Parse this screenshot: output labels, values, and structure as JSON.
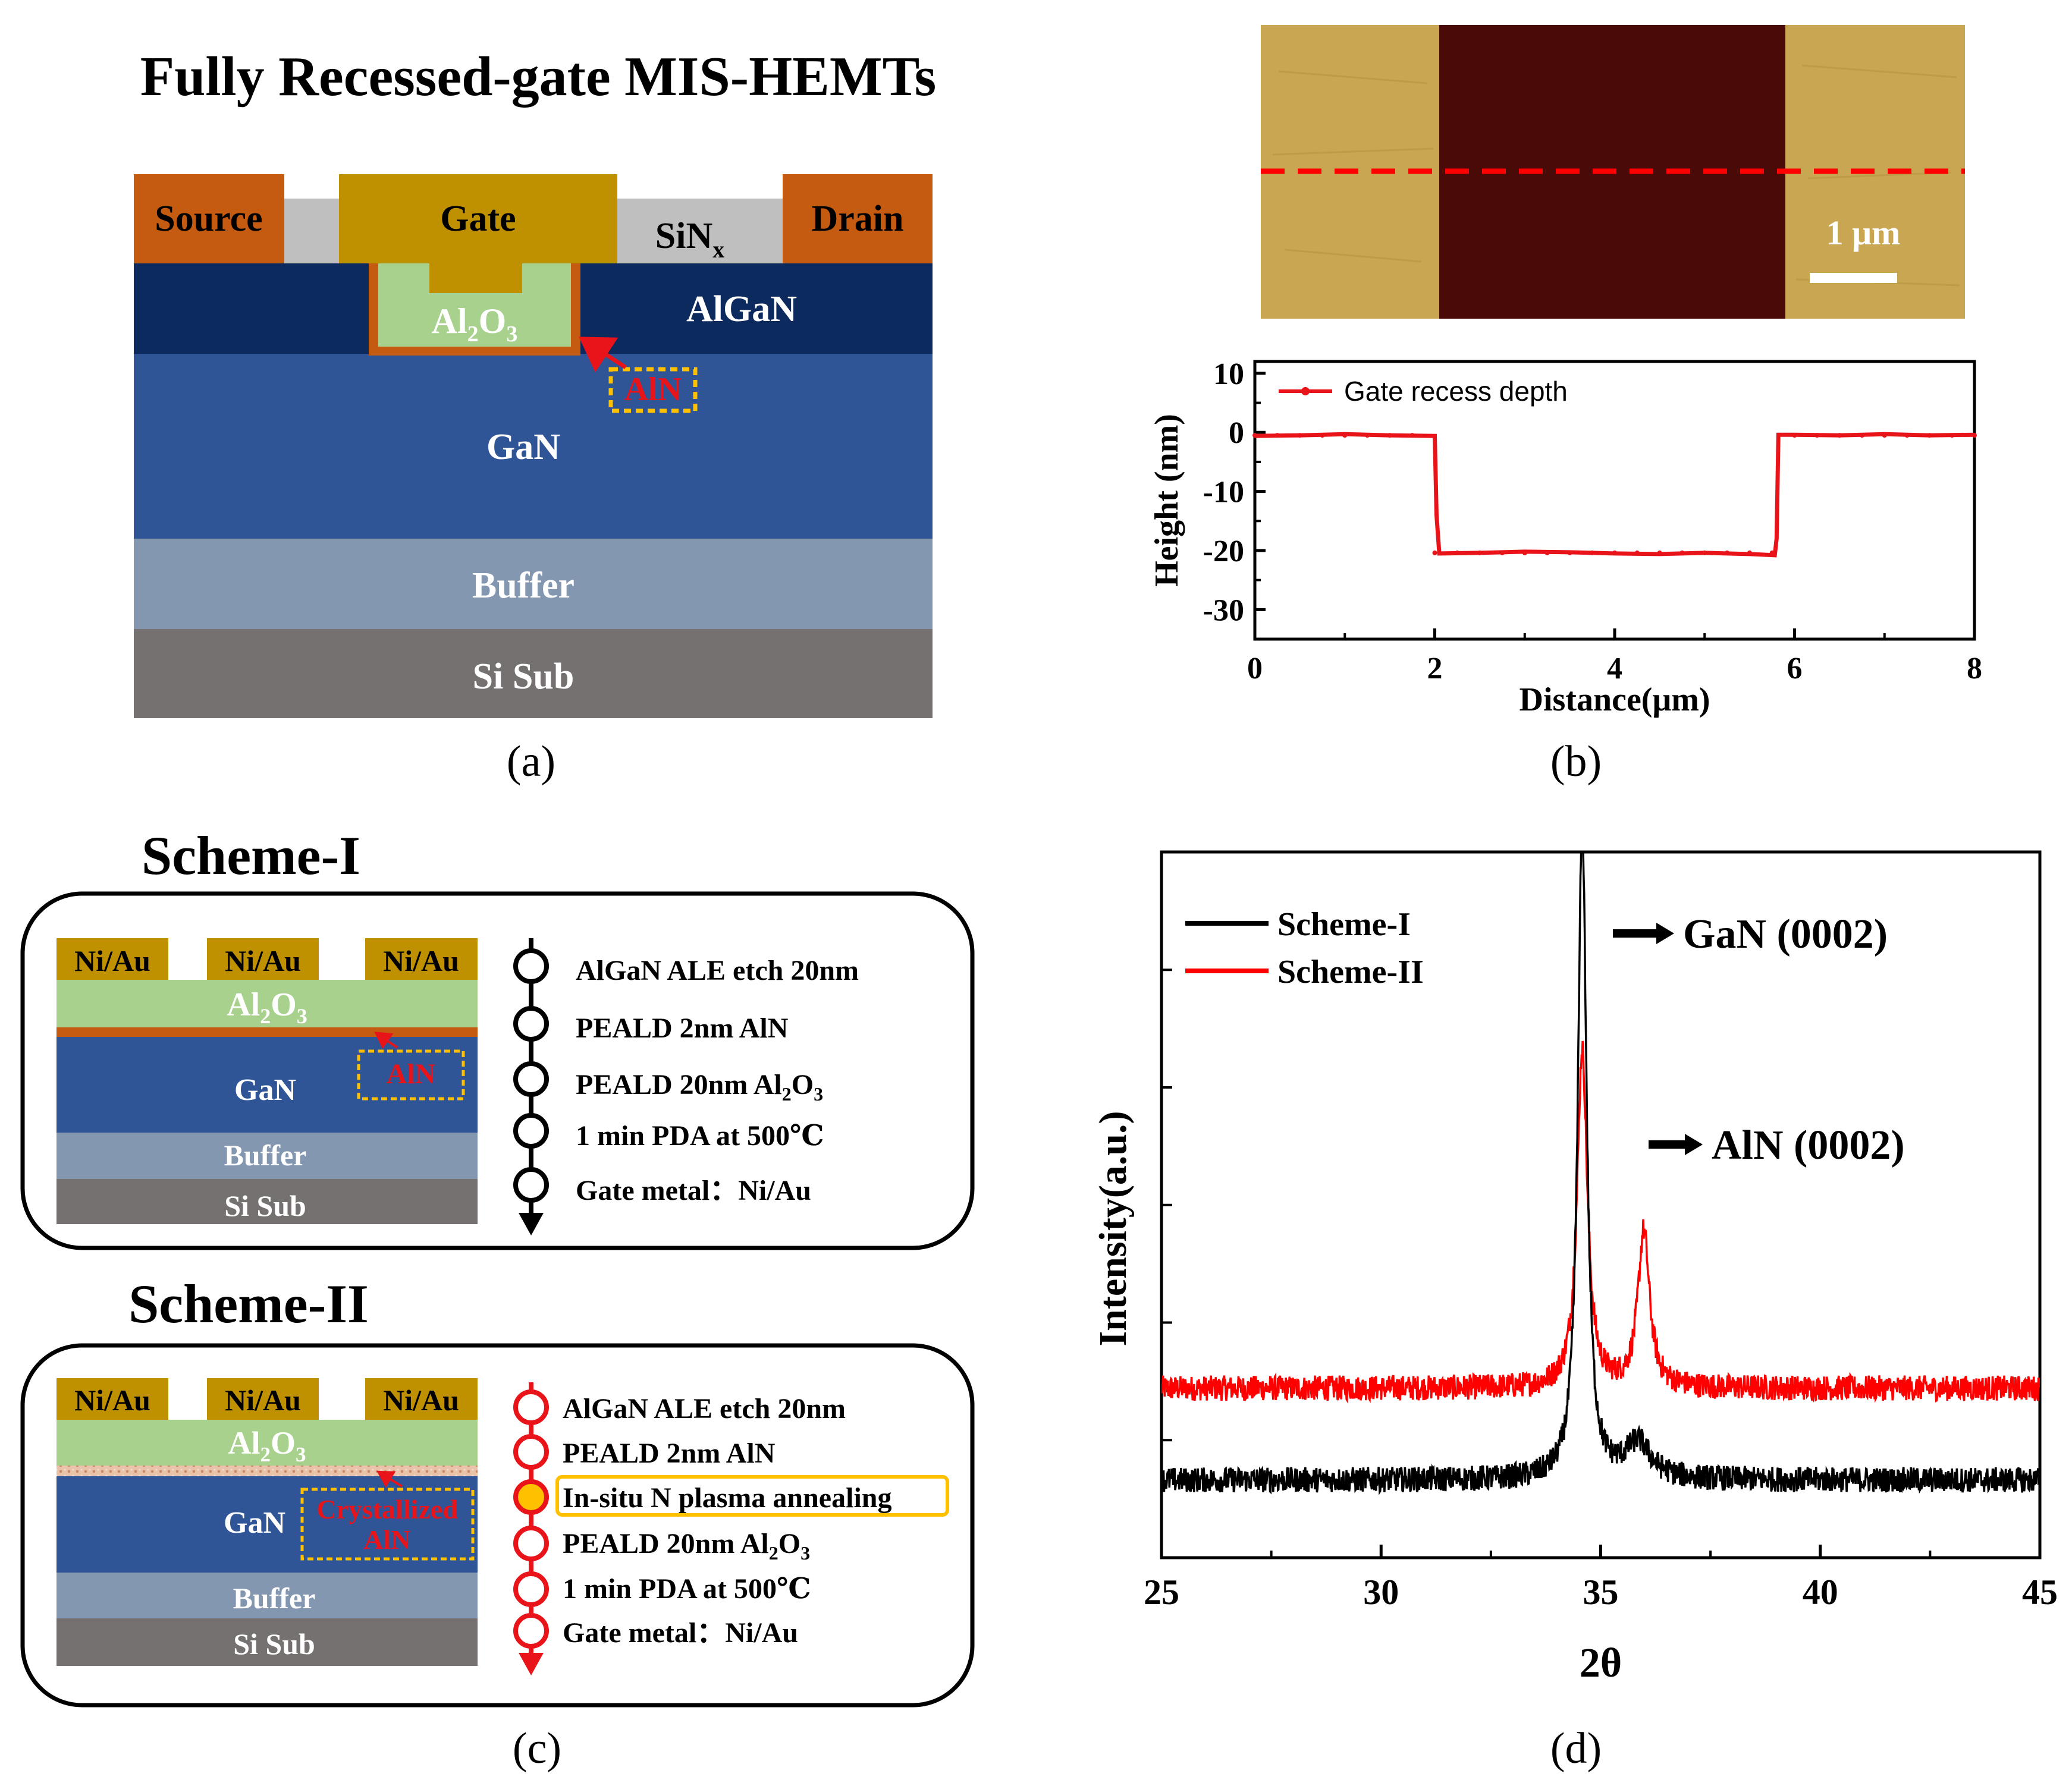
{
  "panel_a": {
    "title": "Fully Recessed-gate MIS-HEMTs",
    "label": "(a)",
    "source": "Source",
    "gate": "Gate",
    "drain": "Drain",
    "sinx_base": "SiN",
    "sinx_sub": "x",
    "algan": "AlGaN",
    "al2o3": {
      "a": "Al",
      "s1": "2",
      "b": "O",
      "s2": "3"
    },
    "aln": "AlN",
    "gan": "GaN",
    "buffer": "Buffer",
    "si_sub": "Si Sub",
    "colors": {
      "contact": "#c55a11",
      "gate": "#bf9000",
      "sinx": "#bfbfbf",
      "algan": "#0d2a5e",
      "gan": "#2f5597",
      "buffer": "#8497b0",
      "sisub": "#767171",
      "al2o3": "#a9d18e"
    }
  },
  "panel_b": {
    "label": "(b)",
    "scale_bar": "1 μm",
    "colors": {
      "afm_high": "#c9a651",
      "afm_low": "#4a0a08",
      "profile": "#e8141a"
    }
  },
  "panel_c": {
    "label": "(c)",
    "scheme1": {
      "title": "Scheme-I",
      "contacts": [
        "Ni/Au",
        "Ni/Au",
        "Ni/Au"
      ],
      "al2o3": {
        "a": "Al",
        "s1": "2",
        "b": "O",
        "s2": "3"
      },
      "aln": "AlN",
      "gan": "GaN",
      "buffer": "Buffer",
      "si_sub": "Si Sub",
      "steps": [
        "AlGaN ALE etch 20nm",
        "PEALD 2nm AlN",
        "PEALD 20nm Al",
        "1 min PDA at 500℃",
        "Gate metal：Ni/Au"
      ],
      "step3_sub1": "2",
      "step3_mid": "O",
      "step3_sub2": "3"
    },
    "scheme2": {
      "title": "Scheme-II",
      "contacts": [
        "Ni/Au",
        "Ni/Au",
        "Ni/Au"
      ],
      "al2o3": {
        "a": "Al",
        "s1": "2",
        "b": "O",
        "s2": "3"
      },
      "aln_line1": "Crystallized",
      "aln_line2": "AlN",
      "gan": "GaN",
      "buffer": "Buffer",
      "si_sub": "Si Sub",
      "steps": [
        "AlGaN ALE etch 20nm",
        "PEALD 2nm AlN",
        "In-situ N plasma annealing",
        "PEALD 20nm Al",
        "1 min PDA at 500℃",
        "Gate metal：Ni/Au"
      ],
      "step4_sub1": "2",
      "step4_mid": "O",
      "step4_sub2": "3"
    }
  },
  "panel_d": {
    "label": "(d)",
    "peak_gan": "GaN (0002)",
    "peak_aln": "AlN (0002)"
  },
  "chart_data": [
    {
      "id": "afm-profile",
      "type": "line",
      "title": "",
      "xlabel": "Distance(μm)",
      "ylabel": "Height (nm)",
      "xlim": [
        0,
        8
      ],
      "ylim": [
        -35,
        12
      ],
      "xticks": [
        0,
        2,
        4,
        6,
        8
      ],
      "yticks": [
        10,
        0,
        -10,
        -20,
        -30
      ],
      "legend": [
        "Gate recess depth"
      ],
      "legend_position": "top-left",
      "series": [
        {
          "name": "Gate recess depth",
          "x": [
            0,
            0.5,
            1,
            1.5,
            2.0,
            2.02,
            2.05,
            2.5,
            3,
            3.5,
            4,
            4.5,
            5,
            5.5,
            5.78,
            5.8,
            5.82,
            6,
            6.5,
            7,
            7.5,
            8
          ],
          "y": [
            -0.6,
            -0.5,
            -0.3,
            -0.5,
            -0.6,
            -14,
            -20.5,
            -20.4,
            -20.2,
            -20.3,
            -20.5,
            -20.6,
            -20.4,
            -20.6,
            -20.8,
            -18,
            -0.4,
            -0.4,
            -0.5,
            -0.3,
            -0.5,
            -0.4
          ]
        }
      ]
    },
    {
      "id": "xrd",
      "type": "line",
      "title": "",
      "xlabel": "2θ",
      "ylabel": "Intensity(a.u.)",
      "xlim": [
        25,
        45
      ],
      "ylim": [
        0,
        1.0
      ],
      "xticks": [
        25,
        30,
        35,
        40,
        45
      ],
      "legend": [
        "Scheme-I",
        "Scheme-II"
      ],
      "legend_position": "top-left",
      "series": [
        {
          "name": "Scheme-I",
          "color": "#000000",
          "baseline": 0.11,
          "noise": 0.018,
          "peaks": [
            {
              "x": 34.58,
              "h": 0.93,
              "w": 0.12
            },
            {
              "x": 35.85,
              "h": 0.05,
              "w": 0.35
            }
          ]
        },
        {
          "name": "Scheme-II",
          "color": "#ff0000",
          "baseline": 0.24,
          "noise": 0.018,
          "peaks": [
            {
              "x": 34.58,
              "h": 0.48,
              "w": 0.14
            },
            {
              "x": 35.98,
              "h": 0.22,
              "w": 0.16
            }
          ]
        }
      ]
    }
  ]
}
